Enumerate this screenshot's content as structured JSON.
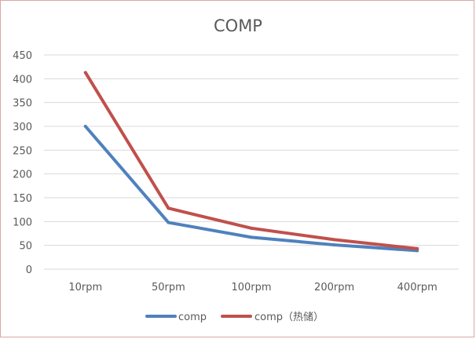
{
  "chart_data": {
    "type": "line",
    "title": "COMP",
    "xlabel": "",
    "ylabel": "",
    "categories": [
      "10rpm",
      "50rpm",
      "100rpm",
      "200rpm",
      "400rpm"
    ],
    "ylim": [
      0,
      450
    ],
    "yticks": [
      0,
      50,
      100,
      150,
      200,
      250,
      300,
      350,
      400,
      450
    ],
    "grid": true,
    "legend": "bottom",
    "series": [
      {
        "name": "comp",
        "values": [
          300,
          98,
          67,
          51,
          39
        ],
        "color": "#4f81bd"
      },
      {
        "name": "comp（热储）",
        "values": [
          413,
          128,
          86,
          62,
          43
        ],
        "color": "#c0504d"
      }
    ]
  }
}
